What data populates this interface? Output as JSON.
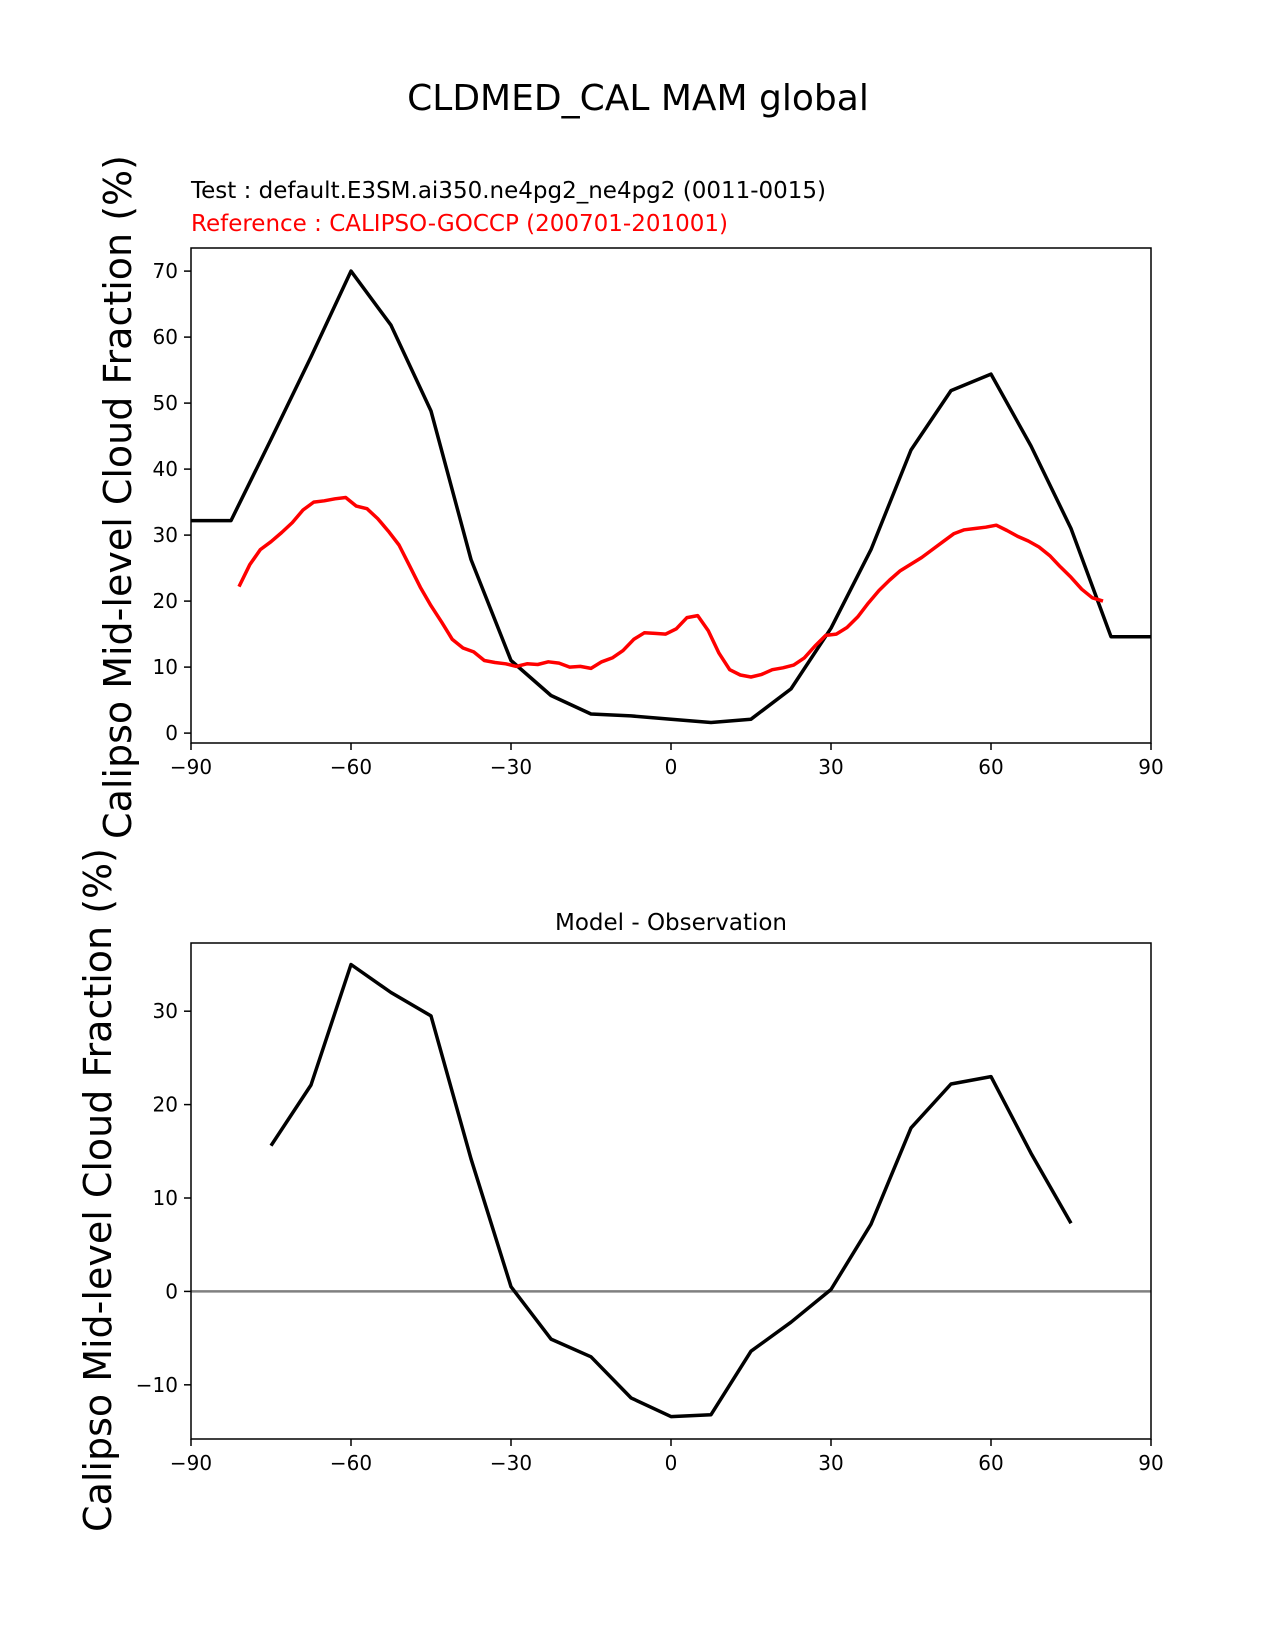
{
  "figure": {
    "title": "CLDMED_CAL MAM global"
  },
  "colors": {
    "test": "#000000",
    "reference": "#ff0000",
    "zero_line": "#808080"
  },
  "chart_data": [
    {
      "type": "line",
      "test_label": "Test : default.E3SM.ai350.ne4pg2_ne4pg2 (0011-0015)",
      "reference_label": "Reference : CALIPSO-GOCCP (200701-201001)",
      "ylabel": "Calipso Mid-level Cloud Fraction (%)",
      "xlim": [
        -90,
        90
      ],
      "ylim": [
        -1.5,
        73.5
      ],
      "xticks": [
        -90,
        -60,
        -30,
        0,
        30,
        60,
        90
      ],
      "yticks": [
        0,
        10,
        20,
        30,
        40,
        50,
        60,
        70
      ],
      "grid": false,
      "series": [
        {
          "role": "test",
          "x": [
            -90,
            -82.5,
            -75,
            -67.5,
            -60,
            -52.5,
            -45,
            -37.5,
            -30,
            -22.5,
            -15,
            -7.5,
            0,
            7.5,
            15,
            22.5,
            30,
            37.5,
            45,
            52.5,
            60,
            67.5,
            75,
            82.5,
            90
          ],
          "y": [
            32.2,
            32.2,
            44.5,
            57.0,
            70.0,
            61.8,
            48.8,
            26.3,
            11.0,
            5.7,
            2.9,
            2.6,
            2.1,
            1.6,
            2.1,
            6.7,
            15.9,
            27.8,
            42.9,
            51.9,
            54.4,
            43.5,
            31.0,
            14.6,
            14.6
          ]
        },
        {
          "role": "reference",
          "x": [
            -81,
            -79,
            -77,
            -75,
            -73,
            -71,
            -69,
            -67,
            -65,
            -63,
            -61,
            -59,
            -57,
            -55,
            -53,
            -51,
            -49,
            -47,
            -45,
            -43,
            -41,
            -39,
            -37,
            -35,
            -33,
            -31,
            -29,
            -27,
            -25,
            -23,
            -21,
            -19,
            -17,
            -15,
            -13,
            -11,
            -9,
            -7,
            -5,
            -3,
            -1,
            1,
            3,
            5,
            7,
            9,
            11,
            13,
            15,
            17,
            19,
            21,
            23,
            25,
            27,
            29,
            31,
            33,
            35,
            37,
            39,
            41,
            43,
            45,
            47,
            49,
            51,
            53,
            55,
            57,
            59,
            61,
            63,
            65,
            67,
            69,
            71,
            73,
            75,
            77,
            79,
            81
          ],
          "y": [
            22.2,
            25.5,
            27.8,
            29.0,
            30.4,
            31.9,
            33.8,
            35.0,
            35.2,
            35.5,
            35.7,
            34.4,
            34.0,
            32.5,
            30.6,
            28.5,
            25.3,
            22.1,
            19.3,
            16.8,
            14.2,
            12.9,
            12.3,
            11.0,
            10.7,
            10.5,
            10.1,
            10.5,
            10.4,
            10.8,
            10.6,
            10.0,
            10.1,
            9.8,
            10.8,
            11.4,
            12.5,
            14.2,
            15.2,
            15.1,
            15.0,
            15.8,
            17.5,
            17.8,
            15.5,
            12.1,
            9.6,
            8.8,
            8.5,
            8.9,
            9.6,
            9.9,
            10.3,
            11.4,
            13.2,
            14.8,
            15.0,
            16.0,
            17.6,
            19.7,
            21.6,
            23.2,
            24.6,
            25.6,
            26.6,
            27.8,
            29.0,
            30.2,
            30.8,
            31.0,
            31.2,
            31.5,
            30.7,
            29.8,
            29.1,
            28.2,
            26.9,
            25.2,
            23.6,
            21.8,
            20.5,
            20.0
          ]
        }
      ]
    },
    {
      "type": "line",
      "title": "Model - Observation",
      "ylabel": "Calipso Mid-level Cloud Fraction (%)",
      "xlim": [
        -90,
        90
      ],
      "ylim": [
        -15.8,
        37.3
      ],
      "xticks": [
        -90,
        -60,
        -30,
        0,
        30,
        60,
        90
      ],
      "yticks": [
        -10,
        0,
        10,
        20,
        30
      ],
      "grid": false,
      "zero_line": true,
      "series": [
        {
          "role": "difference",
          "x": [
            -75,
            -67.5,
            -60,
            -52.5,
            -45,
            -37.5,
            -30,
            -22.5,
            -15,
            -7.5,
            0,
            7.5,
            15,
            22.5,
            30,
            37.5,
            45,
            52.5,
            60,
            67.5,
            75
          ],
          "y": [
            15.6,
            22.1,
            35.0,
            32.0,
            29.5,
            14.2,
            0.5,
            -5.1,
            -7.0,
            -11.4,
            -13.4,
            -13.2,
            -6.4,
            -3.3,
            0.2,
            7.2,
            17.5,
            22.2,
            23.0,
            14.8,
            7.3
          ]
        }
      ]
    }
  ]
}
